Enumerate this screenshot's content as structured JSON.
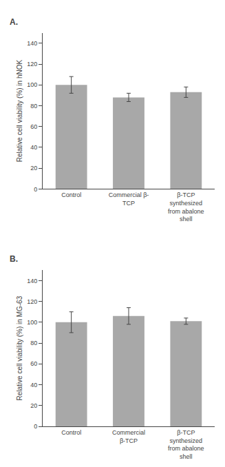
{
  "chart_data": [
    {
      "type": "bar",
      "title": "A.",
      "categories": [
        "Control",
        "Commercial β-\nTCP",
        "β-TCP\nsynthesized\nfrom abalone\nshell"
      ],
      "values": [
        100,
        88,
        93
      ],
      "errors": [
        8,
        4,
        5
      ],
      "ylabel": "Relative cell viability (%) in hNOK",
      "ylim": [
        0,
        150
      ],
      "yticks": [
        0,
        20,
        40,
        60,
        80,
        100,
        120,
        140
      ],
      "color": "#a8a8a8",
      "grid": false
    },
    {
      "type": "bar",
      "title": "B.",
      "categories": [
        "Control",
        "Commercial\nβ-TCP",
        "β-TCP\nsynthesized\nfrom abalone\nshell"
      ],
      "values": [
        100,
        106,
        101
      ],
      "errors": [
        10,
        8,
        3
      ],
      "ylabel": "Relative cell viability (%) in MG-63",
      "ylim": [
        0,
        150
      ],
      "yticks": [
        0,
        20,
        40,
        60,
        80,
        100,
        120,
        140
      ],
      "color": "#a8a8a8",
      "grid": false
    }
  ]
}
